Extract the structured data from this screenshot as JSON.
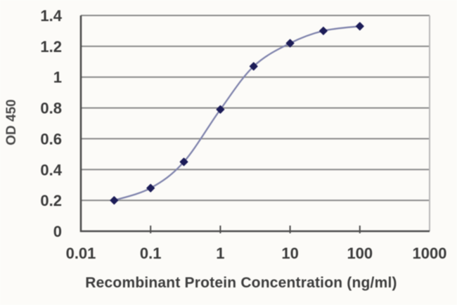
{
  "figure": {
    "background": "#fcfbf8"
  },
  "chart_data": {
    "type": "line",
    "x": [
      0.03,
      0.1,
      0.3,
      1,
      3,
      10,
      30,
      100
    ],
    "y": [
      0.2,
      0.28,
      0.45,
      0.79,
      1.07,
      1.22,
      1.3,
      1.33
    ],
    "xlabel": "Recombinant Protein Concentration (ng/ml)",
    "ylabel": "OD 450",
    "x_scale": "log",
    "xlim": [
      0.01,
      1000
    ],
    "ylim": [
      0,
      1.4
    ],
    "x_tick_labels": [
      "0.01",
      "0.1",
      "1",
      "10",
      "100",
      "1000"
    ],
    "y_tick_labels": [
      "0",
      "0.2",
      "0.4",
      "0.6",
      "0.8",
      "1",
      "1.2",
      "1.4"
    ],
    "grid": "horizontal",
    "legend": "none",
    "marker": "diamond",
    "colors": {
      "line": "#8084ad",
      "marker": "#1d1d58",
      "grid": "#8a8a8a",
      "axis": "#4c4c4c",
      "border_right": "#b9b9b9",
      "text": "#3b3b3b"
    }
  }
}
